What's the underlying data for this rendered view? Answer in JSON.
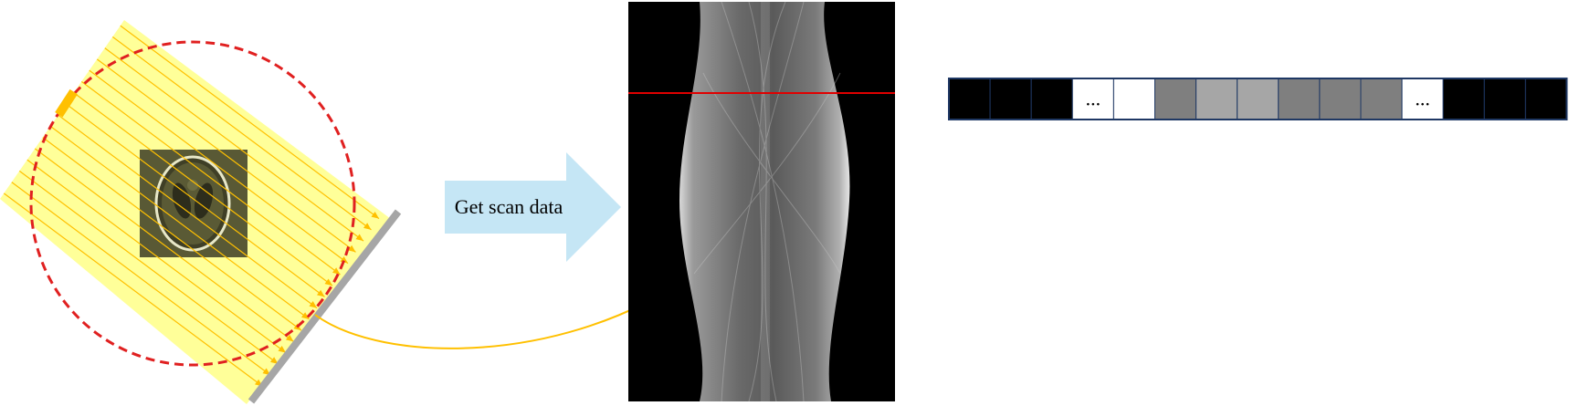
{
  "arrow": {
    "label": "Get scan data",
    "fill": "#C5E6F5"
  },
  "colors": {
    "beam_fill": "#FFFF99",
    "ray_color": "#FFC000",
    "orbit_color": "#E02020",
    "detector_color": "#A6A6A6",
    "scan_line_color": "#E00000",
    "link_curve_color": "#FFC000",
    "phantom_background": "#000000",
    "sinogram_background": "#000000"
  },
  "detector_row": {
    "cells": [
      {
        "shade": "#000000",
        "label": ""
      },
      {
        "shade": "#000000",
        "label": ""
      },
      {
        "shade": "#000000",
        "label": ""
      },
      {
        "shade": "#FFFFFF",
        "label": "..."
      },
      {
        "shade": "#FFFFFF",
        "label": ""
      },
      {
        "shade": "#7F7F7F",
        "label": ""
      },
      {
        "shade": "#A6A6A6",
        "label": ""
      },
      {
        "shade": "#A6A6A6",
        "label": ""
      },
      {
        "shade": "#7F7F7F",
        "label": ""
      },
      {
        "shade": "#7F7F7F",
        "label": ""
      },
      {
        "shade": "#7F7F7F",
        "label": ""
      },
      {
        "shade": "#FFFFFF",
        "label": "..."
      },
      {
        "shade": "#000000",
        "label": ""
      },
      {
        "shade": "#000000",
        "label": ""
      },
      {
        "shade": "#000000",
        "label": ""
      }
    ]
  }
}
